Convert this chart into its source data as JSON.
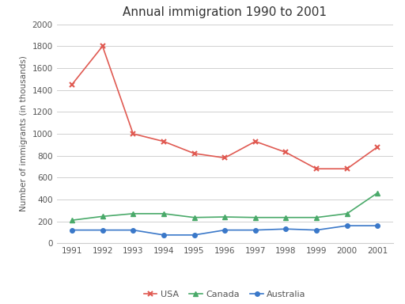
{
  "title": "Annual immigration 1990 to 2001",
  "ylabel": "Number of immigrants (in thousands)",
  "years": [
    1991,
    1992,
    1993,
    1994,
    1995,
    1996,
    1997,
    1998,
    1999,
    2000,
    2001
  ],
  "usa": [
    1450,
    1800,
    1000,
    930,
    820,
    780,
    930,
    830,
    680,
    680,
    880
  ],
  "canada": [
    210,
    245,
    270,
    270,
    235,
    240,
    235,
    235,
    235,
    270,
    460
  ],
  "australia": [
    120,
    120,
    120,
    75,
    75,
    120,
    120,
    130,
    120,
    160,
    160
  ],
  "usa_color": "#e05a52",
  "canada_color": "#4aaa6a",
  "australia_color": "#3a78c9",
  "ylim": [
    0,
    2000
  ],
  "yticks": [
    0,
    200,
    400,
    600,
    800,
    1000,
    1200,
    1400,
    1600,
    1800,
    2000
  ],
  "bg_color": "#ffffff",
  "grid_color": "#d0d0d0",
  "title_color": "#333333",
  "label_color": "#555555"
}
